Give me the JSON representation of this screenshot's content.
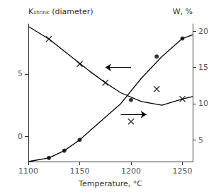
{
  "chart_data": {
    "type": "line",
    "xlabel": "Temperature, °C",
    "ylabel": "Kₛₕᵣᵢₙₖ (diameter)",
    "y2label": "W, %",
    "xlim": [
      1100,
      1260
    ],
    "xticks": [
      1100,
      1150,
      1200,
      1250
    ],
    "ylim": [
      -2,
      9
    ],
    "yticks": [
      0,
      5
    ],
    "y2lim": [
      2,
      21
    ],
    "y2ticks": [
      5,
      10,
      15,
      20
    ],
    "grid": false,
    "series": [
      {
        "type": "line",
        "marker": "none",
        "color": "#000000",
        "x": [
          1100,
          1120,
          1140,
          1160,
          1175,
          1190,
          1210,
          1230,
          1250,
          1260
        ],
        "values": [
          8.8,
          7.8,
          6.5,
          5.2,
          4.3,
          3.5,
          2.8,
          2.5,
          3.0,
          3.2
        ]
      },
      {
        "type": "scatter",
        "marker": "cross",
        "color": "#000000",
        "x": [
          1120,
          1150,
          1175,
          1200,
          1225,
          1250
        ],
        "values": [
          7.8,
          5.8,
          4.3,
          1.2,
          3.8,
          3.0
        ]
      },
      {
        "type": "line",
        "marker": "none",
        "color": "#000000",
        "axis": "y2",
        "x": [
          1100,
          1120,
          1135,
          1150,
          1170,
          1190,
          1210,
          1230,
          1250,
          1260
        ],
        "values": [
          2.0,
          2.5,
          3.5,
          5.0,
          7.5,
          10.0,
          13.5,
          16.5,
          19.0,
          19.5
        ]
      },
      {
        "type": "scatter",
        "marker": "circle",
        "color": "#000000",
        "axis": "y2",
        "x": [
          1120,
          1135,
          1150,
          1200,
          1225,
          1250
        ],
        "values": [
          2.5,
          3.5,
          5.0,
          10.5,
          16.5,
          19.0
        ]
      }
    ],
    "arrows": [
      {
        "x_start": 1200,
        "x_end": 1175,
        "y": 15.0,
        "axis": "y2",
        "color": "#000000"
      },
      {
        "x_start": 1190,
        "x_end": 1215,
        "y": 8.5,
        "axis": "y2",
        "color": "#000000"
      }
    ]
  }
}
